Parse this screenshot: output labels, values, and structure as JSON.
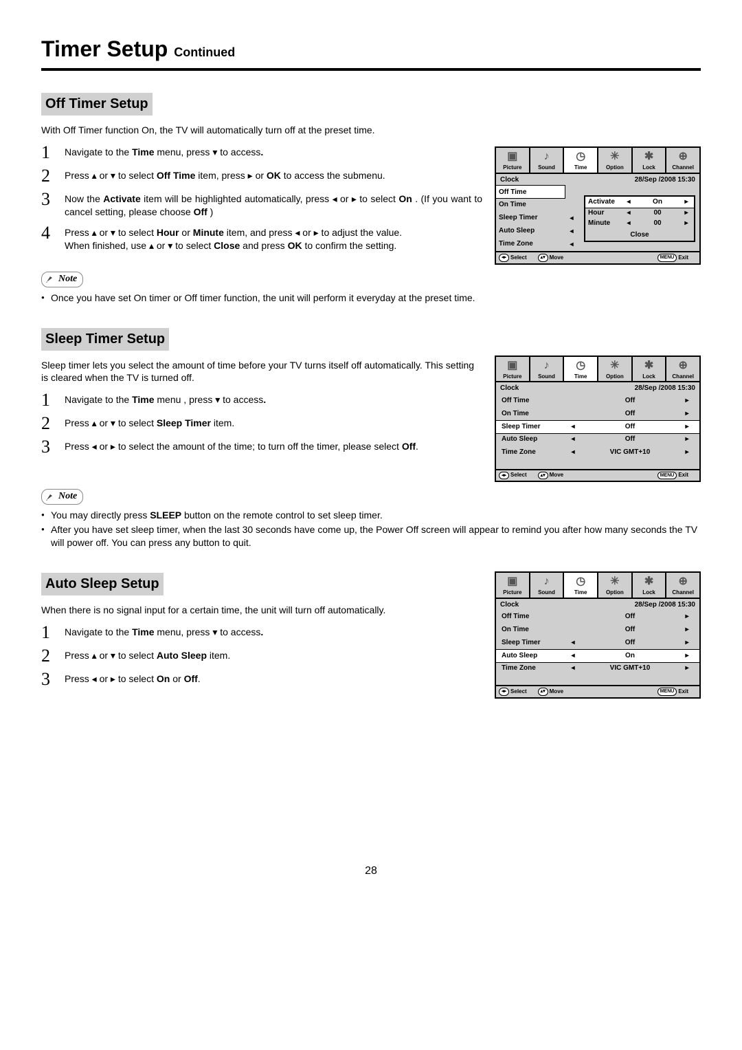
{
  "page": {
    "title": "Timer Setup",
    "continued": "Continued",
    "number": "28"
  },
  "sections": {
    "off": {
      "heading": "Off Timer Setup",
      "intro": "With Off Timer function On, the TV will automatically turn off at the preset time.",
      "steps": [
        "Navigate to the <b>Time</b> menu,  press  ▾  to access<b>.</b>",
        "Press  ▴ or ▾  to select  <b>Off  Time</b>  item,  press   ▸ or  <b>OK</b>  to  access the submenu.",
        "Now  the  <b>Activate</b>  item  will  be  highlighted  automatically,  press ◂ or ▸ to select <b>On</b> . (If you want to cancel setting, please choose <b>Off</b> )",
        "Press  ▴ or ▾  to  select  <b>Hour</b>  or  <b>Minute</b>  item,  and  press   ◂ or ▸ to adjust the value.<br>When finished, use  ▴ or ▾  to select <b>Close</b> and press <b>OK</b> to confirm the setting."
      ],
      "note": [
        "Once you have set On timer or Off timer function, the unit will perform it everyday at the preset time."
      ]
    },
    "sleep": {
      "heading": "Sleep Timer Setup",
      "intro": "Sleep timer lets you select the amount of time before your TV turns itself off automatically. This setting is cleared when the TV is turned off.",
      "steps": [
        "Navigate to the <b>Time</b> menu , press  ▾  to access<b>.</b>",
        "Press  ▴ or ▾  to select <b>Sleep Timer</b> item.",
        "Press   ◂ or ▸ to select the amount of the time; to turn off the timer, please select <b>Off</b>."
      ],
      "note": [
        "You may directly press <b>SLEEP</b> button on the remote control to set sleep timer.",
        "After you have set sleep timer, when the last 30 seconds have come up, the Power Off screen will appear to remind you after how many seconds the TV will power off. You can press any button to quit."
      ]
    },
    "auto": {
      "heading": "Auto Sleep Setup",
      "intro": "When  there  is  no  signal  input  for  a  certain  time,  the  unit  will  turn  off automatically.",
      "steps": [
        "Navigate to the <b>Time</b> menu,  press  ▾  to access<b>.</b>",
        "Press  ▴ or ▾  to select <b>Auto Sleep</b> item.",
        "Press   ◂ or ▸ to select <b>On</b> or <b>Off</b>."
      ]
    }
  },
  "osd": {
    "tabs": [
      "Picture",
      "Sound",
      "Time",
      "Option",
      "Lock",
      "Channel"
    ],
    "tab_icons": [
      "▣",
      "♪",
      "◷",
      "✳",
      "✱",
      "⊕"
    ],
    "active_tab": 2,
    "datetime": "28/Sep  /2008 15:30",
    "foot": {
      "select": "Select",
      "move": "Move",
      "exit": "Exit",
      "menu": "MENU"
    },
    "off_screen": {
      "menu": [
        "Clock",
        "Off Time",
        "On Time",
        "Sleep Timer",
        "Auto Sleep",
        "Time Zone"
      ],
      "selected": 1,
      "arrows_left_idx": [
        3,
        4,
        5
      ],
      "popup": {
        "rows": [
          {
            "label": "Activate",
            "value": "On"
          },
          {
            "label": "Hour",
            "value": "00"
          },
          {
            "label": "Minute",
            "value": "00"
          }
        ],
        "close": "Close",
        "selected": 0
      }
    },
    "sleep_screen": {
      "rows": [
        {
          "label": "Clock",
          "left": false,
          "value": "",
          "right": false
        },
        {
          "label": "Off Time",
          "left": false,
          "value": "Off",
          "right": true
        },
        {
          "label": "On Time",
          "left": false,
          "value": "Off",
          "right": true
        },
        {
          "label": "Sleep Timer",
          "left": true,
          "value": "Off",
          "right": true,
          "sel": true
        },
        {
          "label": "Auto Sleep",
          "left": true,
          "value": "Off",
          "right": true
        },
        {
          "label": "Time Zone",
          "left": true,
          "value": "VIC GMT+10",
          "right": true
        }
      ]
    },
    "auto_screen": {
      "rows": [
        {
          "label": "Clock",
          "left": false,
          "value": "",
          "right": false
        },
        {
          "label": "Off Time",
          "left": false,
          "value": "Off",
          "right": true
        },
        {
          "label": "On Time",
          "left": false,
          "value": "Off",
          "right": true
        },
        {
          "label": "Sleep Timer",
          "left": true,
          "value": "Off",
          "right": true
        },
        {
          "label": "Auto Sleep",
          "left": true,
          "value": "On",
          "right": true,
          "sel": true
        },
        {
          "label": "Time Zone",
          "left": true,
          "value": "VIC GMT+10",
          "right": true
        }
      ]
    }
  },
  "note_label": "Note"
}
